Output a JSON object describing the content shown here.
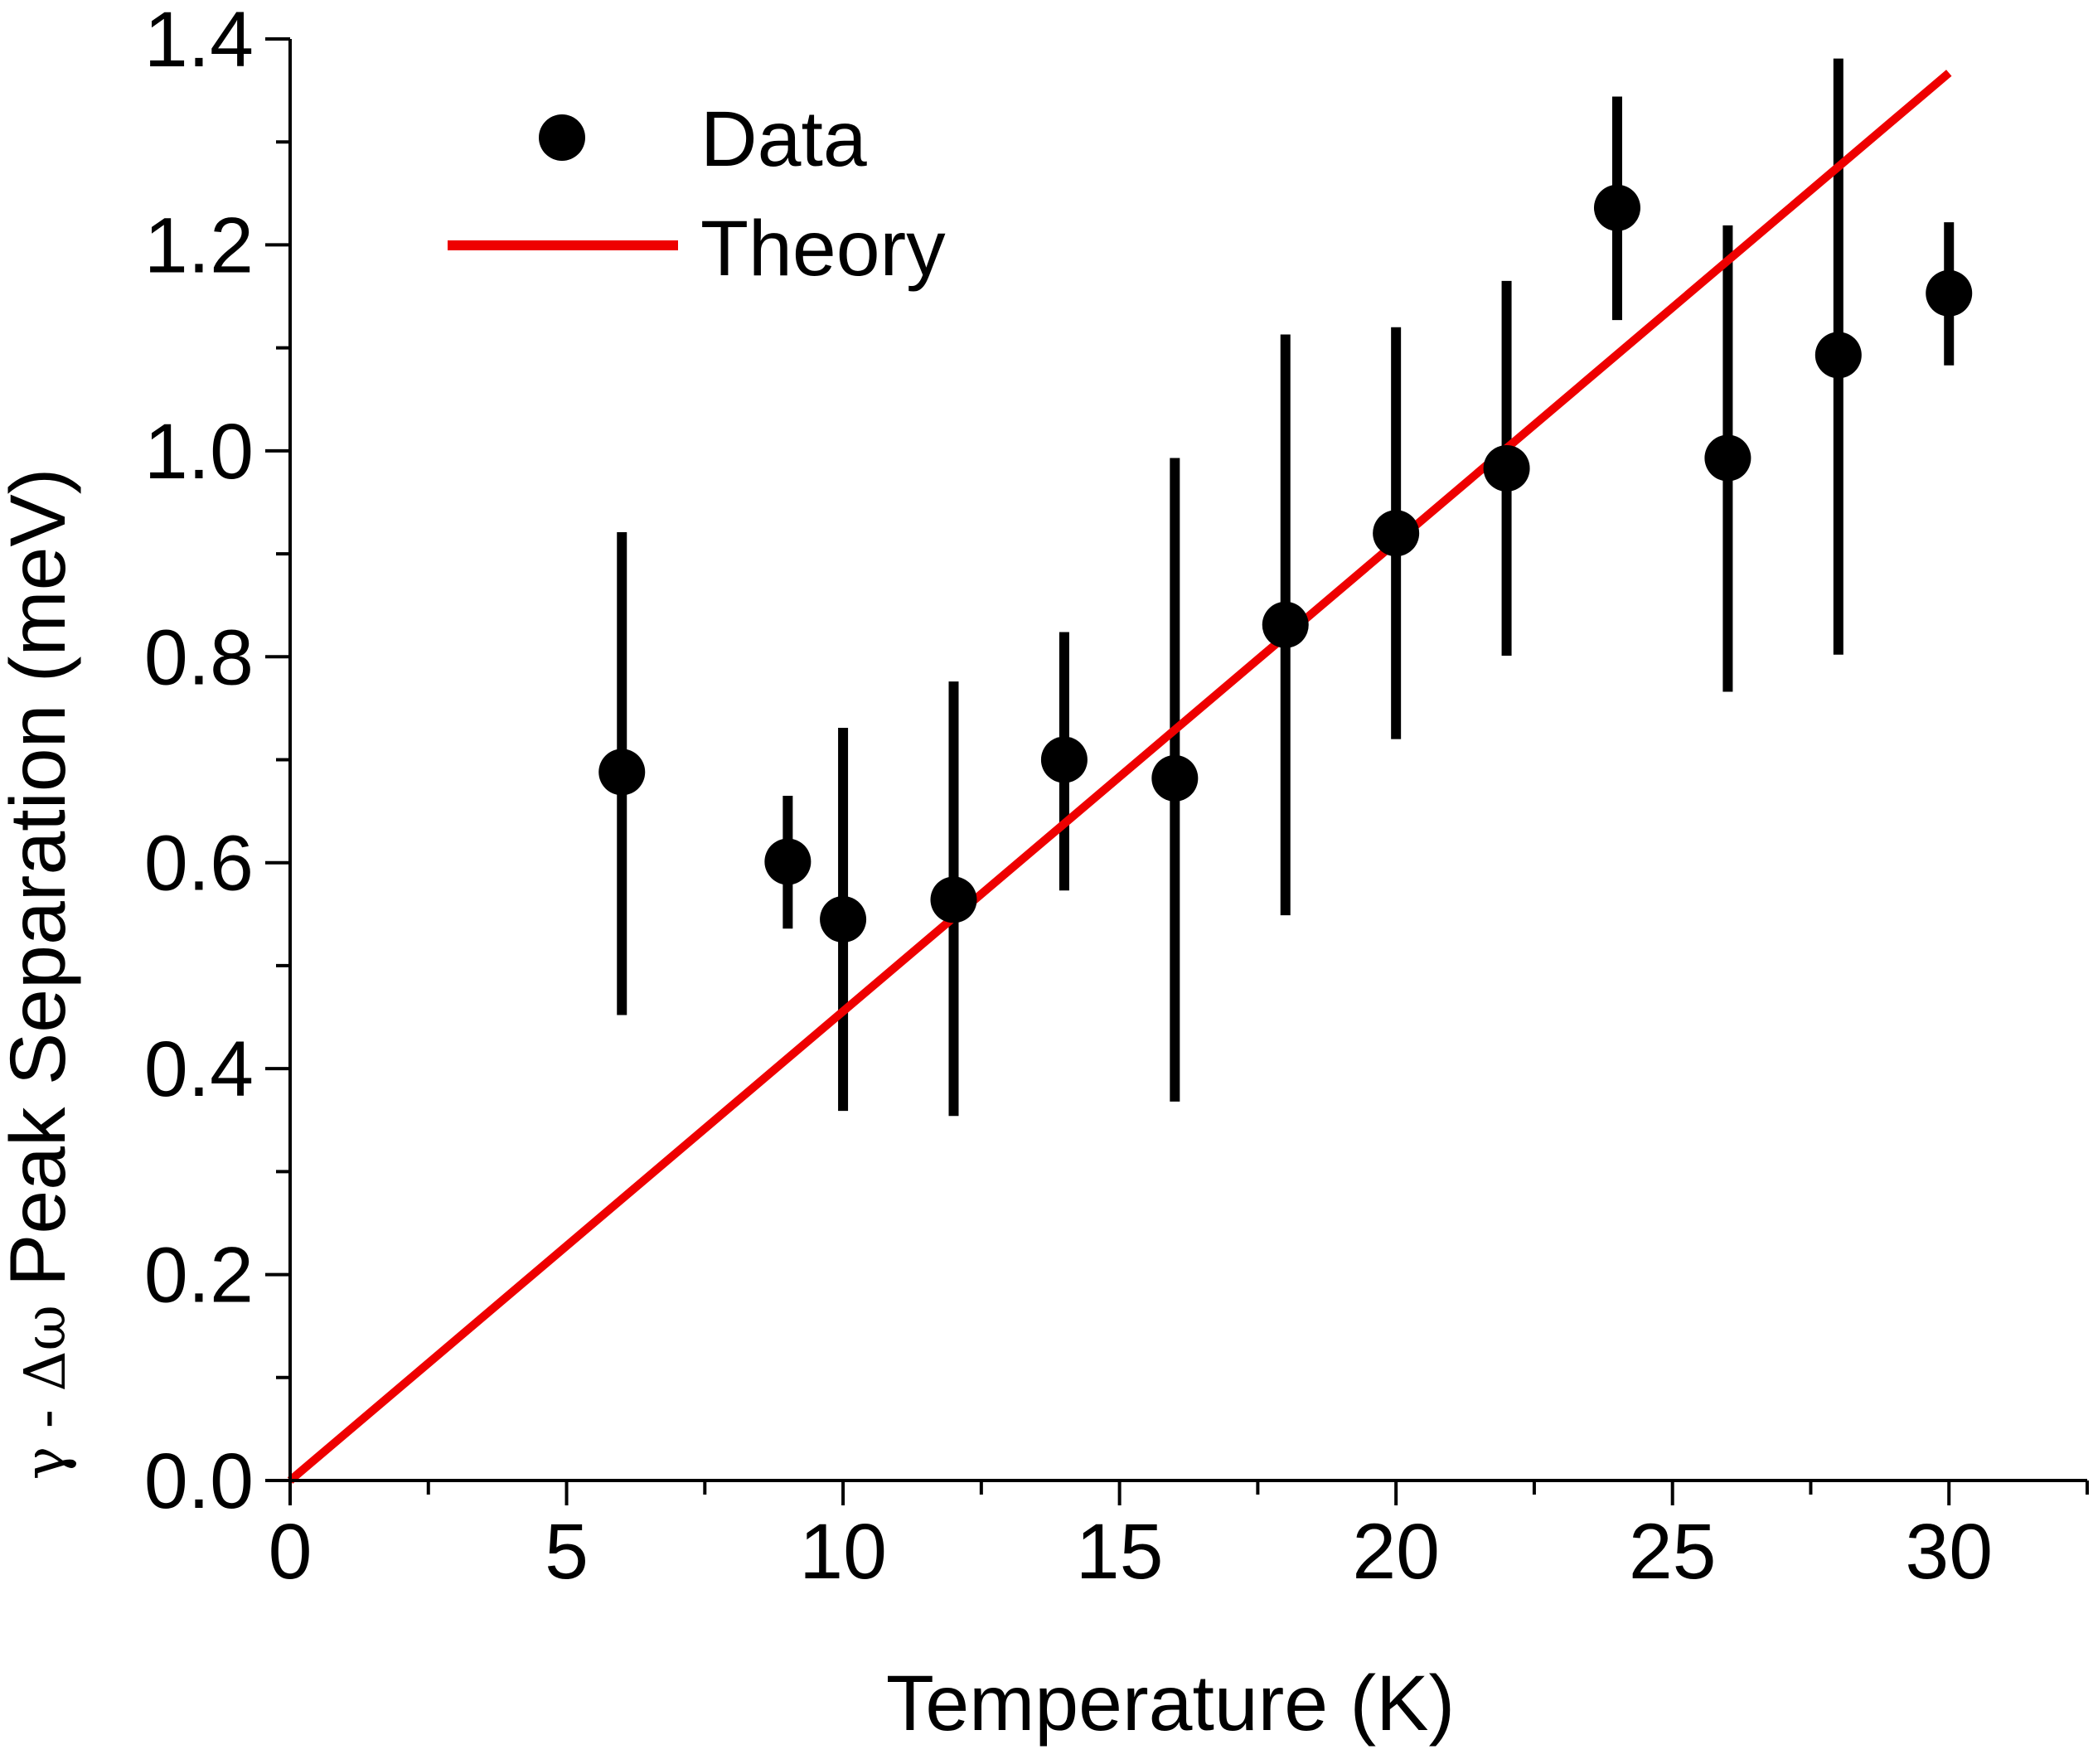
{
  "chart_data": {
    "type": "scatter",
    "title": "",
    "xlabel": "Temperature (K)",
    "ylabel": "γ - Δω Peak Separation (meV)",
    "ylabel_parts": {
      "symbols": "γ - Δω",
      "text": "Peak Separation (meV)"
    },
    "xlim": [
      0,
      32.5
    ],
    "ylim": [
      0,
      1.4
    ],
    "x_ticks": [
      0,
      5,
      10,
      15,
      20,
      25,
      30
    ],
    "x_tick_labels": [
      "0",
      "5",
      "10",
      "15",
      "20",
      "25",
      "30"
    ],
    "x_minor_ticks": [
      2.5,
      7.5,
      12.5,
      17.5,
      22.5,
      27.5,
      32.5
    ],
    "y_ticks": [
      0,
      0.2,
      0.4,
      0.6,
      0.8,
      1.0,
      1.2,
      1.4
    ],
    "y_tick_labels": [
      "0.0",
      "0.2",
      "0.4",
      "0.6",
      "0.8",
      "1.0",
      "1.2",
      "1.4"
    ],
    "y_minor_ticks": [
      0.1,
      0.3,
      0.5,
      0.7,
      0.9,
      1.1,
      1.3
    ],
    "grid": false,
    "legend_position": "top-left",
    "series": [
      {
        "name": "Data",
        "kind": "points-with-errorbars",
        "color": "#000000",
        "points": [
          {
            "x": 6,
            "y": 0.688,
            "ylow": 0.452,
            "yhigh": 0.921
          },
          {
            "x": 9,
            "y": 0.601,
            "ylow": 0.536,
            "yhigh": 0.665
          },
          {
            "x": 10,
            "y": 0.545,
            "ylow": 0.359,
            "yhigh": 0.731
          },
          {
            "x": 12,
            "y": 0.564,
            "ylow": 0.354,
            "yhigh": 0.776
          },
          {
            "x": 14,
            "y": 0.7,
            "ylow": 0.573,
            "yhigh": 0.824
          },
          {
            "x": 16,
            "y": 0.682,
            "ylow": 0.368,
            "yhigh": 0.993
          },
          {
            "x": 18,
            "y": 0.831,
            "ylow": 0.549,
            "yhigh": 1.113
          },
          {
            "x": 20,
            "y": 0.92,
            "ylow": 0.72,
            "yhigh": 1.12
          },
          {
            "x": 22,
            "y": 0.983,
            "ylow": 0.801,
            "yhigh": 1.165
          },
          {
            "x": 24,
            "y": 1.236,
            "ylow": 1.127,
            "yhigh": 1.344
          },
          {
            "x": 26,
            "y": 0.993,
            "ylow": 0.766,
            "yhigh": 1.219
          },
          {
            "x": 28,
            "y": 1.093,
            "ylow": 0.802,
            "yhigh": 1.381
          },
          {
            "x": 30,
            "y": 1.153,
            "ylow": 1.083,
            "yhigh": 1.222
          }
        ]
      },
      {
        "name": "Theory",
        "kind": "line",
        "color": "#ee0000",
        "x": [
          0,
          30
        ],
        "y": [
          0,
          1.367
        ]
      }
    ]
  }
}
